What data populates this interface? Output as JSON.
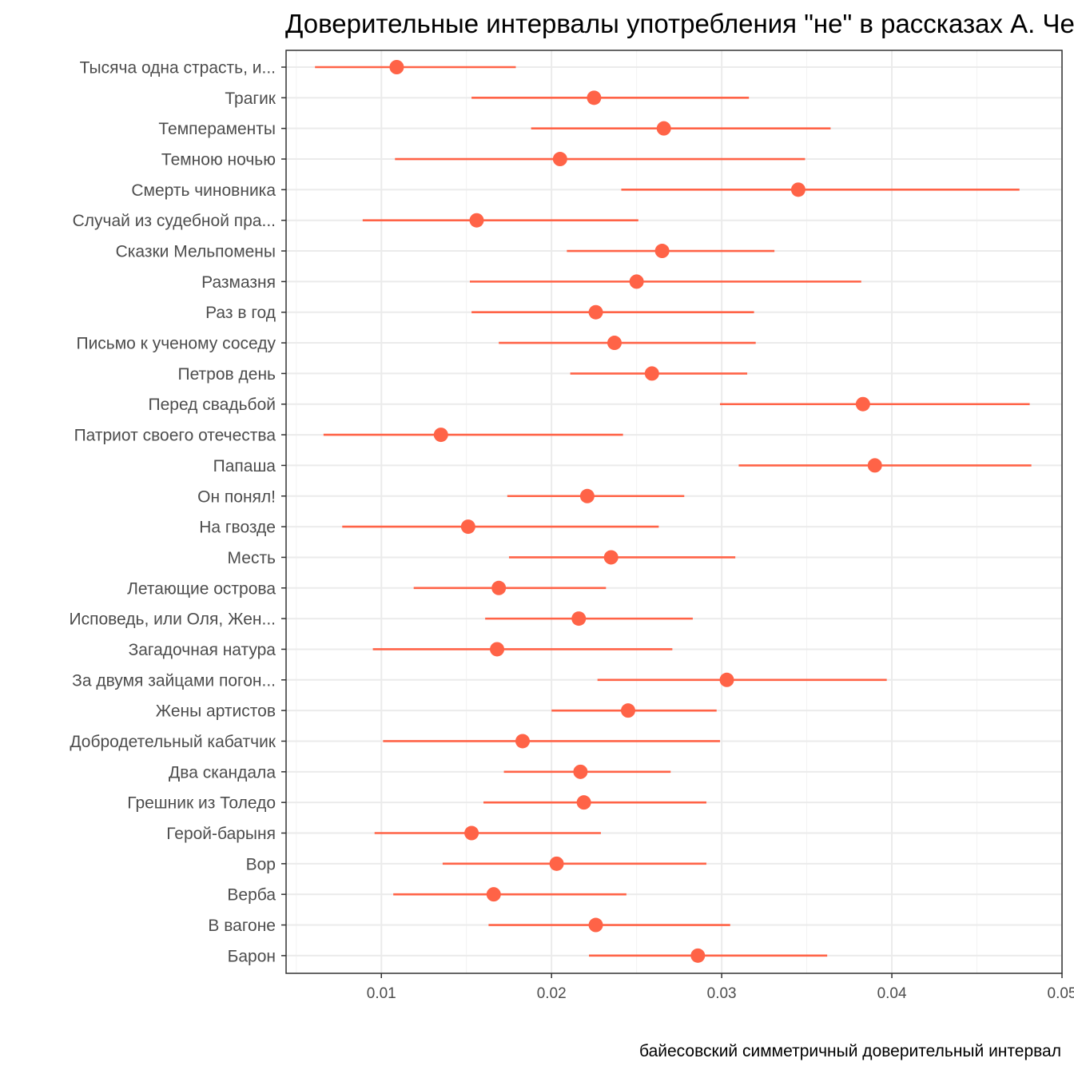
{
  "chart_data": {
    "type": "scatter",
    "title": "Доверительные интервалы употребления \"не\" в рассказах А. Чехова",
    "xlabel": "байесовский симметричный доверительный интервал",
    "ylabel": "",
    "xlim": [
      0.0044,
      0.05
    ],
    "xticks": [
      0.01,
      0.02,
      0.03,
      0.04,
      0.05
    ],
    "xtick_labels": [
      "0.01",
      "0.02",
      "0.03",
      "0.04",
      "0.05"
    ],
    "grid": true,
    "legend": "none",
    "color": "#ff6347",
    "categories": [
      "Тысяча одна страсть, и...",
      "Трагик",
      "Темпераменты",
      "Темною ночью",
      "Смерть чиновника",
      "Случай из судебной пра...",
      "Сказки Мельпомены",
      "Размазня",
      "Раз в год",
      "Письмо к ученому соседу",
      "Петров день",
      "Перед свадьбой",
      "Патриот своего отечества",
      "Папаша",
      "Он понял!",
      "На гвозде",
      "Месть",
      "Летающие острова",
      "Исповедь, или Оля, Жен...",
      "Загадочная натура",
      "За двумя зайцами погон...",
      "Жены артистов",
      "Добродетельный кабатчик",
      "Два скандала",
      "Грешник из Толедо",
      "Герой-барыня",
      "Вор",
      "Верба",
      "В вагоне",
      "Барон"
    ],
    "estimate": [
      0.0109,
      0.0225,
      0.0266,
      0.0205,
      0.0345,
      0.0156,
      0.0265,
      0.025,
      0.0226,
      0.0237,
      0.0259,
      0.0383,
      0.0135,
      0.039,
      0.0221,
      0.0151,
      0.0235,
      0.0169,
      0.0216,
      0.0168,
      0.0303,
      0.0245,
      0.0183,
      0.0217,
      0.0219,
      0.0153,
      0.0203,
      0.0166,
      0.0226,
      0.0286
    ],
    "lower": [
      0.0061,
      0.0153,
      0.0188,
      0.0108,
      0.0241,
      0.0089,
      0.0209,
      0.0152,
      0.0153,
      0.0169,
      0.0211,
      0.0299,
      0.0066,
      0.031,
      0.0174,
      0.0077,
      0.0175,
      0.0119,
      0.0161,
      0.0095,
      0.0227,
      0.02,
      0.0101,
      0.0172,
      0.016,
      0.0096,
      0.0136,
      0.0107,
      0.0163,
      0.0222
    ],
    "upper": [
      0.0179,
      0.0316,
      0.0364,
      0.0349,
      0.0475,
      0.0251,
      0.0331,
      0.0382,
      0.0319,
      0.032,
      0.0315,
      0.0481,
      0.0242,
      0.0482,
      0.0278,
      0.0263,
      0.0308,
      0.0232,
      0.0283,
      0.0271,
      0.0397,
      0.0297,
      0.0299,
      0.027,
      0.0291,
      0.0229,
      0.0291,
      0.0244,
      0.0305,
      0.0362
    ]
  }
}
